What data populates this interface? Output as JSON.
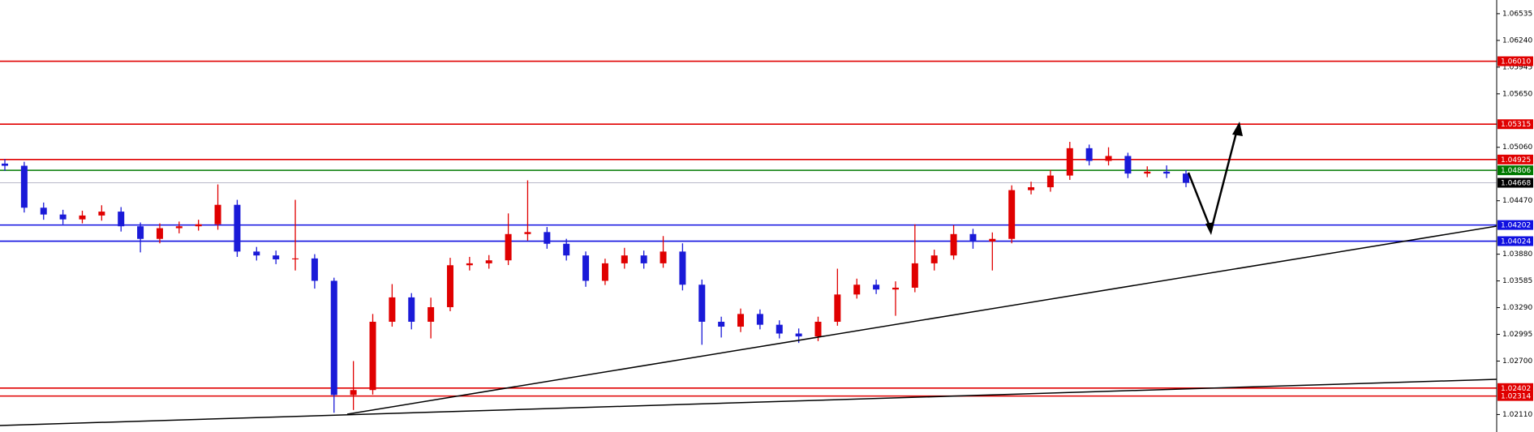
{
  "chart_data": {
    "type": "candlestick",
    "up_color": "#e00000",
    "down_color": "#1a1ad8",
    "ylim": [
      1.01917,
      1.06686
    ],
    "yticks": [
      1.06535,
      {
        "value": 1.0624,
        "label": "1.06240"
      },
      1.05945,
      {
        "value": 1.0565,
        "label": "1.05650"
      },
      {
        "value": 1.0506,
        "label": "1.05060"
      },
      {
        "value": 1.0447,
        "label": "1.04470"
      },
      {
        "value": 1.0388,
        "label": "1.03880"
      },
      1.03585,
      {
        "value": 1.0329,
        "label": "1.03290"
      },
      1.02995,
      {
        "value": 1.027,
        "label": "1.02700"
      },
      {
        "value": 1.0211,
        "label": "1.02110"
      }
    ],
    "levels": [
      {
        "value": 1.0601,
        "label": "1.06010",
        "color": "#e00000"
      },
      {
        "value": 1.05315,
        "label": "1.05315",
        "color": "#e00000"
      },
      {
        "value": 1.04925,
        "label": "1.04925",
        "color": "#e00000"
      },
      {
        "value": 1.04806,
        "label": "1.04806",
        "color": "#007a00"
      },
      {
        "value": 1.04668,
        "label": "1.04668",
        "color": "#000000"
      },
      {
        "value": 1.04202,
        "label": "1.04202",
        "color": "#1010e0"
      },
      {
        "value": 1.04024,
        "label": "1.04024",
        "color": "#1010e0"
      },
      {
        "value": 1.02402,
        "label": "1.02402",
        "color": "#e00000"
      },
      {
        "value": 1.02314,
        "label": "1.02314",
        "color": "#e00000"
      }
    ],
    "open": [
      1.0488,
      1.04856,
      1.04393,
      1.04318,
      1.04264,
      1.04307,
      1.0435,
      1.04188,
      1.04049,
      1.04167,
      1.04188,
      1.0421,
      1.04425,
      1.03909,
      1.03866,
      1.03823,
      1.03833,
      1.03586,
      1.02326,
      1.0238,
      1.03134,
      1.03403,
      1.03134,
      1.03295,
      1.03758,
      1.03779,
      1.03812,
      1.04102,
      1.04124,
      1.03995,
      1.03866,
      1.03586,
      1.03779,
      1.03866,
      1.03779,
      1.03909,
      1.03543,
      1.03134,
      1.0308,
      1.0322,
      1.03101,
      1.03004,
      1.02972,
      1.03134,
      1.03435,
      1.03543,
      1.0349,
      1.0351,
      1.03779,
      1.03866,
      1.04102,
      1.0402,
      1.04049,
      1.04587,
      1.04619,
      1.04748,
      1.0505,
      1.0491,
      1.04964,
      1.0477,
      1.04791,
      1.0477
    ],
    "high": [
      1.0493,
      1.049,
      1.0445,
      1.0437,
      1.0436,
      1.0442,
      1.044,
      1.0423,
      1.0422,
      1.0424,
      1.0426,
      1.0465,
      1.0448,
      1.0396,
      1.0392,
      1.0448,
      1.0388,
      1.0362,
      1.027,
      1.0322,
      1.0355,
      1.0345,
      1.034,
      1.0384,
      1.0385,
      1.0387,
      1.0433,
      1.04695,
      1.0418,
      1.0405,
      1.0391,
      1.0383,
      1.0395,
      1.0392,
      1.0408,
      1.04,
      1.036,
      1.0319,
      1.0328,
      1.0327,
      1.0315,
      1.0306,
      1.0319,
      1.0372,
      1.0361,
      1.036,
      1.0358,
      1.0421,
      1.0393,
      1.042,
      1.0416,
      1.0412,
      1.0464,
      1.0468,
      1.0481,
      1.0512,
      1.0509,
      1.0506,
      1.05,
      1.0485,
      1.0486,
      1.0481
    ],
    "low": [
      1.048,
      1.0434,
      1.0426,
      1.0421,
      1.0422,
      1.0425,
      1.0413,
      1.039,
      1.04,
      1.0411,
      1.0414,
      1.0415,
      1.0385,
      1.0381,
      1.0377,
      1.037,
      1.035,
      1.0213,
      1.0216,
      1.0233,
      1.0308,
      1.0305,
      1.0295,
      1.0325,
      1.037,
      1.0372,
      1.0376,
      1.0403,
      1.0394,
      1.0381,
      1.0352,
      1.0354,
      1.0372,
      1.0372,
      1.0373,
      1.0348,
      1.0288,
      1.0296,
      1.0302,
      1.0305,
      1.0295,
      1.029,
      1.0292,
      1.0309,
      1.0339,
      1.0344,
      1.032,
      1.0346,
      1.037,
      1.0382,
      1.0394,
      1.037,
      1.04,
      1.0454,
      1.0457,
      1.047,
      1.0486,
      1.0486,
      1.0472,
      1.0473,
      1.0472,
      1.0462
    ],
    "close": [
      1.04856,
      1.04393,
      1.04318,
      1.04264,
      1.04307,
      1.0435,
      1.04188,
      1.04049,
      1.04167,
      1.04188,
      1.0421,
      1.04425,
      1.03909,
      1.03866,
      1.03823,
      1.03833,
      1.03586,
      1.02326,
      1.0238,
      1.03134,
      1.03403,
      1.03134,
      1.03295,
      1.03758,
      1.03779,
      1.03812,
      1.04102,
      1.04124,
      1.03995,
      1.03866,
      1.03586,
      1.03779,
      1.03866,
      1.03779,
      1.03909,
      1.03543,
      1.03134,
      1.0308,
      1.0322,
      1.03101,
      1.03004,
      1.02972,
      1.03134,
      1.03435,
      1.03543,
      1.0349,
      1.0351,
      1.03779,
      1.03866,
      1.04102,
      1.0402,
      1.04049,
      1.04587,
      1.04619,
      1.04748,
      1.0505,
      1.0491,
      1.04964,
      1.0477,
      1.04791,
      1.0477,
      1.04668
    ]
  }
}
